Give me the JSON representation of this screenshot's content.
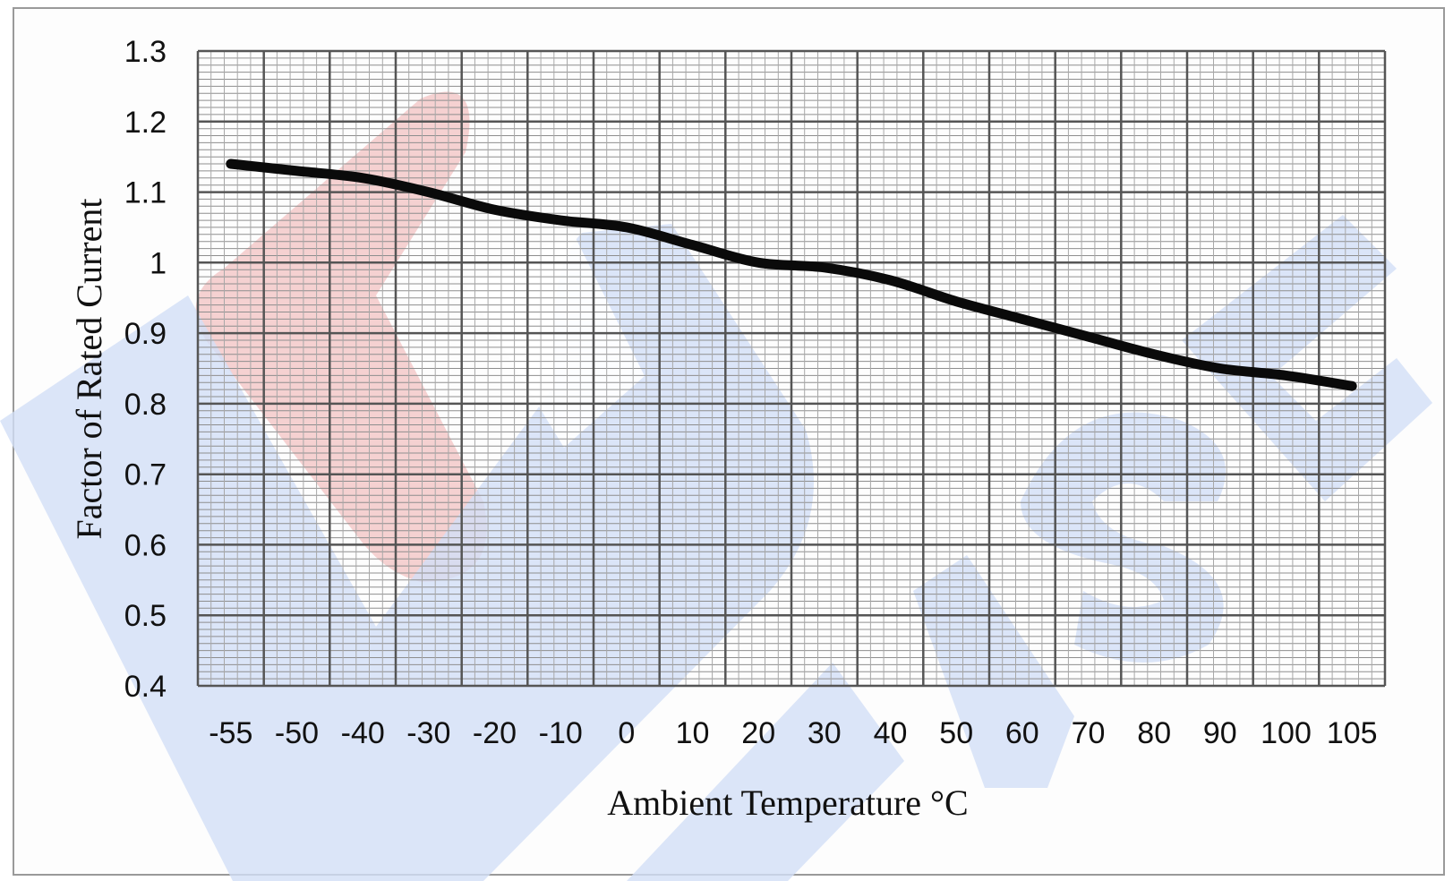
{
  "chart_data": {
    "type": "line",
    "xlabel": "Ambient Temperature °C",
    "ylabel": "Factor of Rated Current",
    "categories": [
      "-55",
      "-50",
      "-40",
      "-30",
      "-20",
      "-10",
      "0",
      "10",
      "20",
      "30",
      "40",
      "50",
      "60",
      "70",
      "80",
      "90",
      "100",
      "105"
    ],
    "ylim": [
      0.4,
      1.3
    ],
    "yticks": [
      "1.3",
      "1.2",
      "1.1",
      "1",
      "0.9",
      "0.8",
      "0.7",
      "0.6",
      "0.5",
      "0.4"
    ],
    "grid": true,
    "series": [
      {
        "values": [
          1.14,
          1.13,
          1.12,
          1.1,
          1.075,
          1.06,
          1.05,
          1.025,
          1.0,
          0.993,
          0.975,
          0.945,
          0.92,
          0.895,
          0.87,
          0.85,
          0.84,
          0.825
        ]
      }
    ]
  },
  "watermark": {
    "text": "FUSE",
    "colors": [
      "#f3c9c9",
      "#d2dff6"
    ]
  }
}
